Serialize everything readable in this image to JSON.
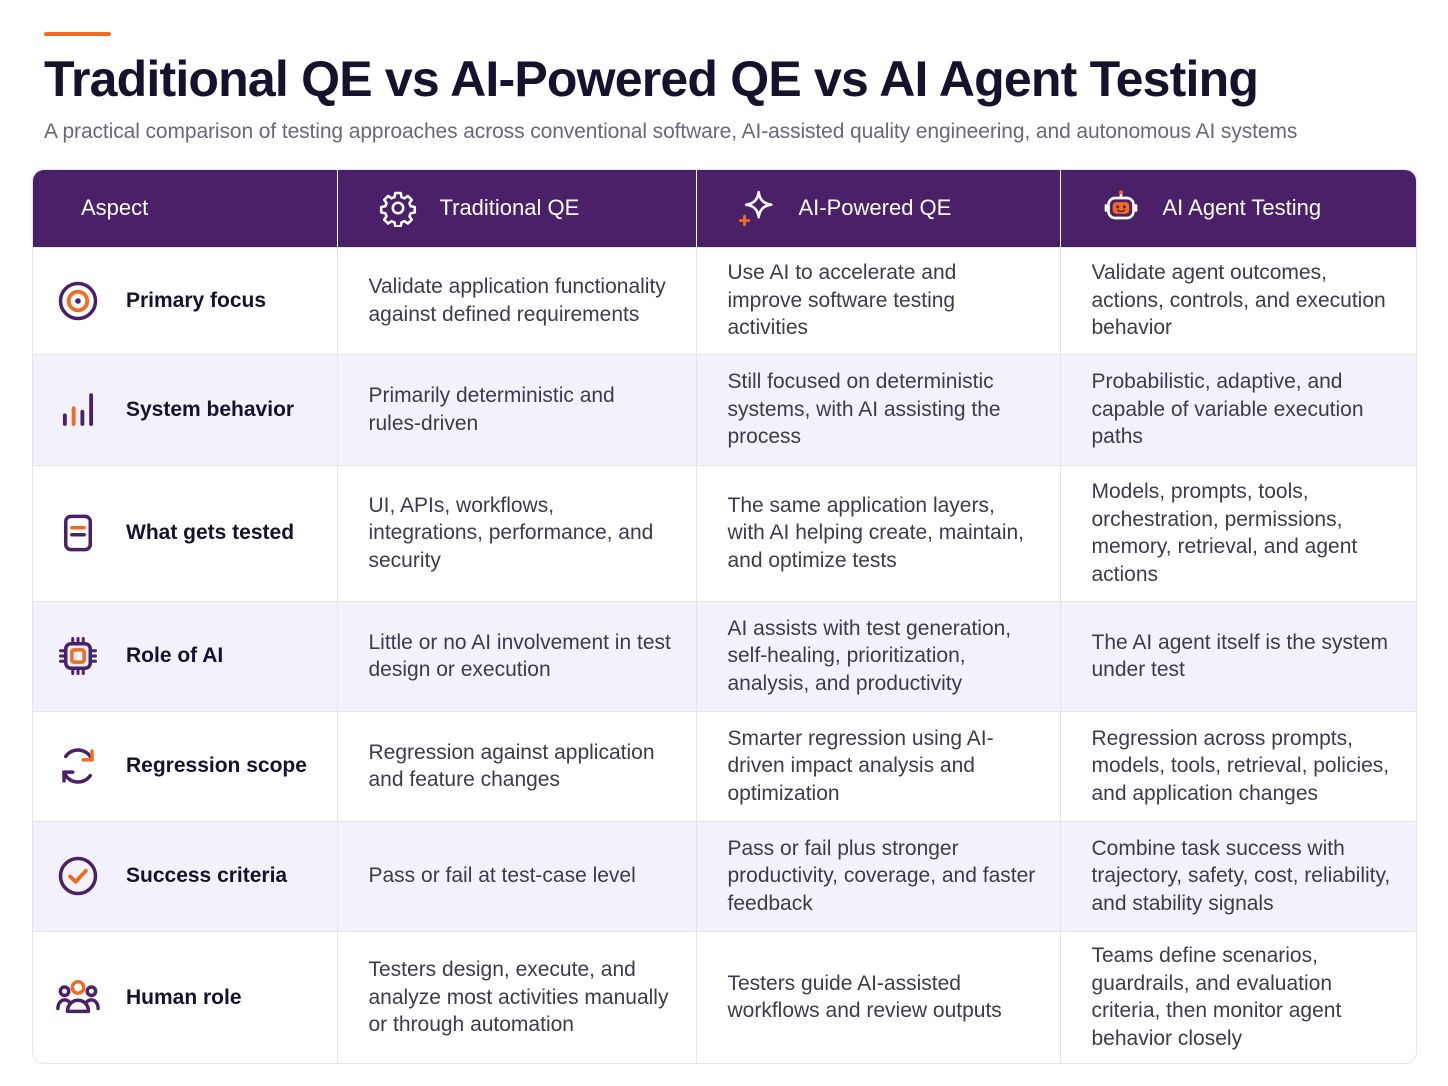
{
  "header": {
    "title": "Traditional QE vs AI-Powered QE vs AI Agent Testing",
    "subtitle": "A practical comparison of testing approaches across conventional software, AI-assisted quality engineering, and autonomous AI systems"
  },
  "colors": {
    "accent": "#f26b21",
    "header_bg": "#4a2169",
    "icon": "#4a2169",
    "stripe": "#f3f1fa"
  },
  "table": {
    "columns": [
      {
        "label": "Aspect",
        "icon": ""
      },
      {
        "label": "Traditional QE",
        "icon": "gear-icon"
      },
      {
        "label": "AI-Powered QE",
        "icon": "sparkle-icon"
      },
      {
        "label": "AI Agent Testing",
        "icon": "robot-icon"
      }
    ],
    "rows": [
      {
        "aspect": "Primary focus",
        "icon": "target-icon",
        "traditional": "Validate application functionality against defined requirements",
        "ai_powered": "Use AI to accelerate and improve software testing activities",
        "agent": "Validate agent outcomes, actions, controls, and execution behavior"
      },
      {
        "aspect": "System behavior",
        "icon": "bar-chart-icon",
        "traditional": "Primarily deterministic and rules-driven",
        "ai_powered": "Still focused on deterministic systems, with AI assisting the process",
        "agent": "Probabilistic, adaptive, and capable of variable execution paths"
      },
      {
        "aspect": "What gets tested",
        "icon": "document-icon",
        "traditional": "UI, APIs, workflows, integrations, performance, and security",
        "ai_powered": "The same application layers, with AI helping create, maintain, and optimize tests",
        "agent": "Models, prompts, tools, orchestration, permissions, memory, retrieval, and agent actions"
      },
      {
        "aspect": "Role of AI",
        "icon": "chip-icon",
        "traditional": "Little or no AI involvement in test design or execution",
        "ai_powered": "AI assists with test generation, self-healing, prioritization, analysis, and productivity",
        "agent": "The AI agent itself is the system under test"
      },
      {
        "aspect": "Regression scope",
        "icon": "refresh-icon",
        "traditional": "Regression against application and feature changes",
        "ai_powered": "Smarter regression using AI-driven impact analysis and optimization",
        "agent": "Regression across prompts, models, tools, retrieval, policies, and application changes"
      },
      {
        "aspect": "Success criteria",
        "icon": "check-circle-icon",
        "traditional": "Pass or fail at test-case level",
        "ai_powered": "Pass or fail plus stronger productivity, coverage, and faster feedback",
        "agent": "Combine task success with trajectory, safety, cost, reliability, and stability signals"
      },
      {
        "aspect": "Human role",
        "icon": "people-icon",
        "traditional": "Testers design, execute, and analyze most activities manually or through automation",
        "ai_powered": "Testers guide AI-assisted workflows and review outputs",
        "agent": "Teams define scenarios, guardrails, and evaluation criteria, then monitor agent behavior closely"
      }
    ]
  }
}
